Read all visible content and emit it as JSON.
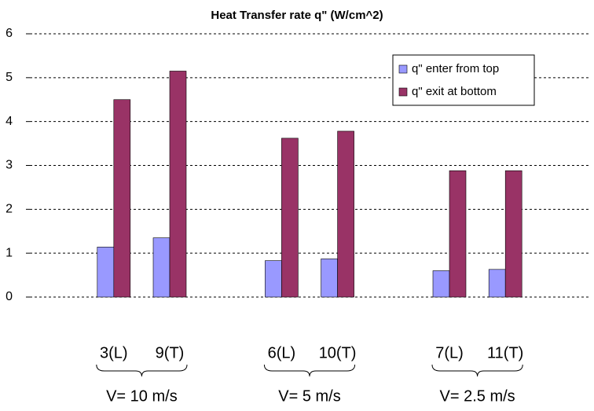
{
  "chart_data": {
    "type": "bar",
    "title": "Heat Transfer rate q\" (W/cm^2)",
    "categories": [
      null,
      "3(L)",
      "9(T)",
      null,
      "6(L)",
      "10(T)",
      null,
      "7(L)",
      "11(T)",
      null
    ],
    "group_labels": [
      "V= 10 m/s",
      "V= 5 m/s",
      "V= 2.5 m/s"
    ],
    "series": [
      {
        "name": "q\" enter from top",
        "color": "#9999ff",
        "values": [
          null,
          1.14,
          1.35,
          null,
          0.83,
          0.87,
          null,
          0.6,
          0.63,
          null
        ]
      },
      {
        "name": "q\" exit at bottom",
        "color": "#993366",
        "values": [
          null,
          4.5,
          5.15,
          null,
          3.62,
          3.78,
          null,
          2.88,
          2.88,
          null
        ]
      }
    ],
    "ylim": [
      0,
      6
    ],
    "yticks": [
      0,
      1,
      2,
      3,
      4,
      5,
      6
    ],
    "grid": true,
    "legend": "top-right"
  }
}
